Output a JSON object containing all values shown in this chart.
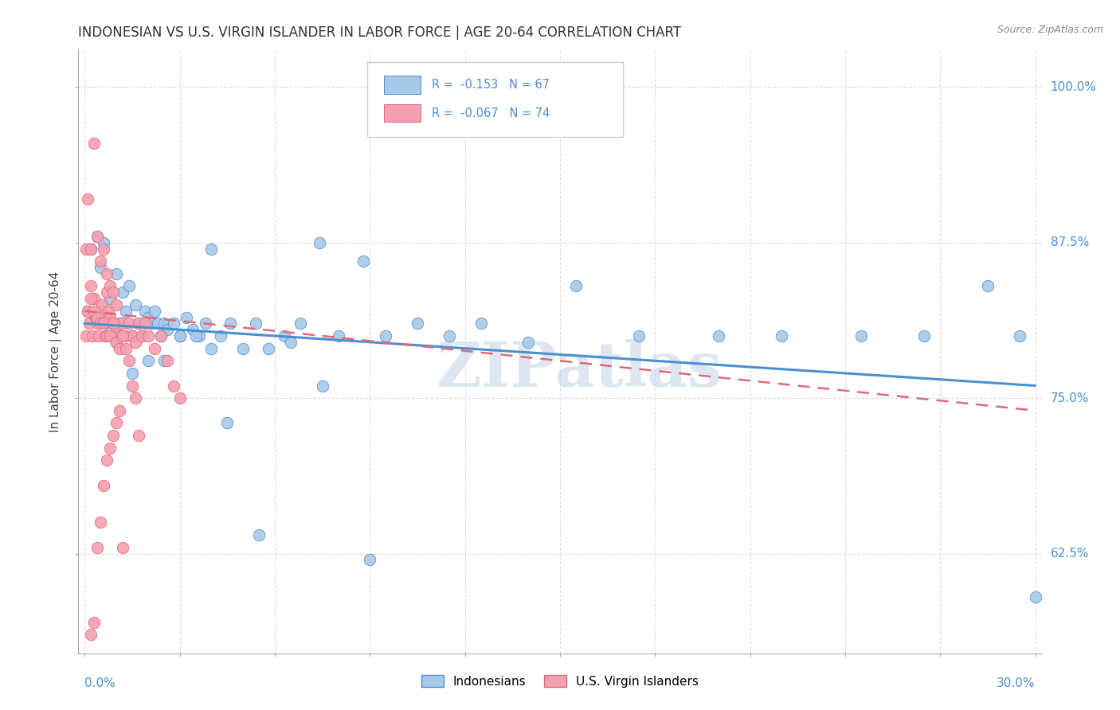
{
  "title": "INDONESIAN VS U.S. VIRGIN ISLANDER IN LABOR FORCE | AGE 20-64 CORRELATION CHART",
  "source": "Source: ZipAtlas.com",
  "ylabel": "In Labor Force | Age 20-64",
  "blue_R": -0.153,
  "blue_N": 67,
  "pink_R": -0.067,
  "pink_N": 74,
  "blue_color": "#a8c8e8",
  "pink_color": "#f4a0b0",
  "blue_line_color": "#4a90d0",
  "pink_line_color": "#e06878",
  "watermark": "ZIPatlas",
  "watermark_color": "#c8d8e8",
  "legend_label_blue": "Indonesians",
  "legend_label_pink": "U.S. Virgin Islanders",
  "xlim": [
    0.0,
    0.3
  ],
  "ylim": [
    0.545,
    1.03
  ],
  "yticks": [
    0.625,
    0.75,
    0.875,
    1.0
  ],
  "ytick_labels": [
    "62.5%",
    "75.0%",
    "87.5%",
    "100.0%"
  ],
  "blue_trend_x": [
    0.0,
    0.3
  ],
  "blue_trend_y": [
    0.81,
    0.76
  ],
  "pink_trend_x": [
    0.0,
    0.3
  ],
  "pink_trend_y": [
    0.82,
    0.74
  ],
  "blue_x": [
    0.002,
    0.004,
    0.005,
    0.006,
    0.007,
    0.008,
    0.009,
    0.01,
    0.011,
    0.012,
    0.013,
    0.014,
    0.015,
    0.016,
    0.017,
    0.018,
    0.019,
    0.02,
    0.021,
    0.022,
    0.023,
    0.024,
    0.025,
    0.026,
    0.028,
    0.03,
    0.032,
    0.034,
    0.036,
    0.038,
    0.04,
    0.043,
    0.046,
    0.05,
    0.054,
    0.058,
    0.063,
    0.068,
    0.074,
    0.08,
    0.088,
    0.095,
    0.105,
    0.115,
    0.125,
    0.14,
    0.155,
    0.175,
    0.2,
    0.22,
    0.245,
    0.265,
    0.285,
    0.295,
    0.3,
    0.01,
    0.015,
    0.02,
    0.025,
    0.03,
    0.035,
    0.04,
    0.045,
    0.055,
    0.065,
    0.075,
    0.09
  ],
  "blue_y": [
    0.87,
    0.88,
    0.855,
    0.875,
    0.81,
    0.83,
    0.8,
    0.85,
    0.81,
    0.835,
    0.82,
    0.84,
    0.8,
    0.825,
    0.81,
    0.8,
    0.82,
    0.815,
    0.81,
    0.82,
    0.81,
    0.8,
    0.81,
    0.805,
    0.81,
    0.8,
    0.815,
    0.805,
    0.8,
    0.81,
    0.87,
    0.8,
    0.81,
    0.79,
    0.81,
    0.79,
    0.8,
    0.81,
    0.875,
    0.8,
    0.86,
    0.8,
    0.81,
    0.8,
    0.81,
    0.795,
    0.84,
    0.8,
    0.8,
    0.8,
    0.8,
    0.8,
    0.84,
    0.8,
    0.59,
    0.795,
    0.77,
    0.78,
    0.78,
    0.8,
    0.8,
    0.79,
    0.73,
    0.64,
    0.795,
    0.76,
    0.62
  ],
  "pink_x": [
    0.0005,
    0.001,
    0.0015,
    0.002,
    0.0025,
    0.003,
    0.0035,
    0.004,
    0.0045,
    0.005,
    0.0055,
    0.006,
    0.0065,
    0.007,
    0.0075,
    0.008,
    0.0085,
    0.009,
    0.0095,
    0.01,
    0.011,
    0.012,
    0.013,
    0.014,
    0.015,
    0.016,
    0.017,
    0.018,
    0.019,
    0.02,
    0.022,
    0.024,
    0.026,
    0.028,
    0.03,
    0.0005,
    0.001,
    0.002,
    0.003,
    0.004,
    0.005,
    0.006,
    0.007,
    0.008,
    0.009,
    0.01,
    0.001,
    0.002,
    0.003,
    0.004,
    0.005,
    0.006,
    0.007,
    0.008,
    0.009,
    0.01,
    0.011,
    0.012,
    0.013,
    0.014,
    0.015,
    0.016,
    0.017,
    0.002,
    0.003,
    0.004,
    0.005,
    0.006,
    0.007,
    0.008,
    0.009,
    0.01,
    0.011,
    0.012
  ],
  "pink_y": [
    0.8,
    0.82,
    0.81,
    0.84,
    0.8,
    0.83,
    0.815,
    0.81,
    0.8,
    0.82,
    0.825,
    0.81,
    0.8,
    0.835,
    0.82,
    0.815,
    0.8,
    0.81,
    0.8,
    0.805,
    0.8,
    0.81,
    0.8,
    0.81,
    0.8,
    0.795,
    0.81,
    0.8,
    0.81,
    0.8,
    0.79,
    0.8,
    0.78,
    0.76,
    0.75,
    0.87,
    0.91,
    0.87,
    0.955,
    0.88,
    0.86,
    0.87,
    0.85,
    0.84,
    0.835,
    0.825,
    0.82,
    0.83,
    0.82,
    0.815,
    0.81,
    0.81,
    0.8,
    0.8,
    0.81,
    0.795,
    0.79,
    0.8,
    0.79,
    0.78,
    0.76,
    0.75,
    0.72,
    0.56,
    0.57,
    0.63,
    0.65,
    0.68,
    0.7,
    0.71,
    0.72,
    0.73,
    0.74,
    0.63
  ]
}
